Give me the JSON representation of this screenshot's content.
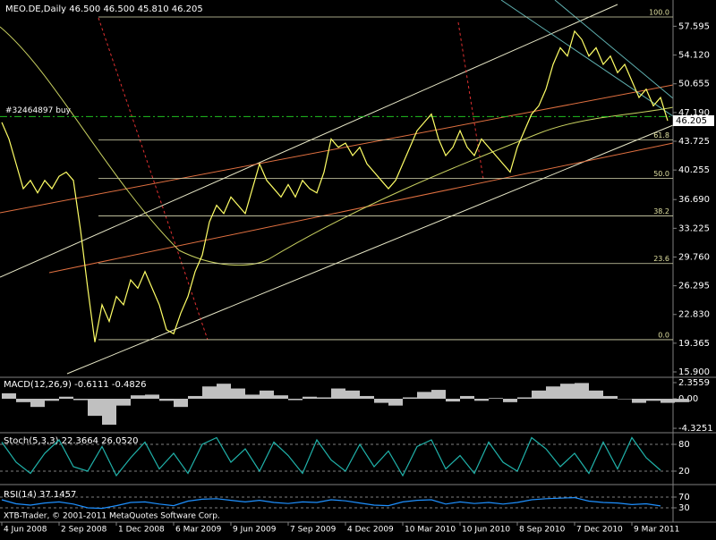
{
  "chart_data": [
    {
      "type": "line",
      "title": "MEO.DE,Daily  46.500 46.500 45.810 46.205",
      "color": "#ffff66",
      "categories": [
        "4 Jun 2008",
        null,
        null,
        null,
        null,
        null,
        null,
        null,
        "2 Sep 2008",
        null,
        null,
        null,
        null,
        null,
        null,
        null,
        "1 Dec 2008",
        null,
        null,
        null,
        null,
        null,
        null,
        null,
        "6 Mar 2009",
        null,
        null,
        null,
        null,
        null,
        null,
        null,
        "9 Jun 2009",
        null,
        null,
        null,
        null,
        null,
        null,
        null,
        "7 Sep 2009",
        null,
        null,
        null,
        null,
        null,
        null,
        null,
        "4 Dec 2009",
        null,
        null,
        null,
        null,
        null,
        null,
        null,
        "10 Mar 2010",
        null,
        null,
        null,
        null,
        null,
        null,
        null,
        "10 Jun 2010",
        null,
        null,
        null,
        null,
        null,
        null,
        null,
        "8 Sep 2010",
        null,
        null,
        null,
        null,
        null,
        null,
        null,
        "7 Dec 2010",
        null,
        null,
        null,
        null,
        null,
        null,
        null,
        "9 Mar 2011",
        null,
        null,
        null,
        null,
        null
      ],
      "values": [
        46,
        44,
        41,
        38,
        39,
        37.5,
        39,
        38,
        39.5,
        40,
        39,
        33,
        26,
        19.5,
        24,
        22,
        25,
        24,
        27,
        26,
        28,
        26,
        24,
        21,
        20.5,
        23,
        25,
        28,
        30,
        34,
        36,
        35,
        37,
        36,
        35,
        38,
        41,
        39,
        38,
        37,
        38.5,
        37,
        39,
        38,
        37.5,
        40,
        44,
        43,
        43.5,
        42,
        43,
        41,
        40,
        39,
        38,
        39,
        41,
        43,
        45,
        46,
        47,
        44,
        42,
        43,
        45,
        43,
        42,
        44,
        43,
        42,
        41,
        40,
        43,
        45,
        47,
        48,
        50,
        53,
        55,
        54,
        57,
        56,
        54,
        55,
        53,
        54,
        52,
        53,
        51,
        49,
        50,
        48,
        49,
        46.2
      ],
      "ylim": [
        15.47,
        60.33
      ],
      "yticks": [
        {
          "value": 15.9,
          "label": "15.900"
        },
        19.365,
        {
          "value": 22.83,
          "label": "22.830"
        },
        26.295,
        {
          "value": 29.76,
          "label": "29.760"
        },
        33.225,
        {
          "value": 36.69,
          "label": "36.690"
        },
        40.255,
        43.725,
        {
          "value": 47.19,
          "label": "47.190"
        },
        50.655,
        {
          "value": 54.12,
          "label": "54.120"
        },
        57.595
      ],
      "fibo_levels": [
        {
          "label": "100.0",
          "value": 58.71
        },
        {
          "label": "61.8",
          "value": 43.9
        },
        {
          "label": "50.0",
          "value": 39.25
        },
        {
          "label": "38.2",
          "value": 34.71
        },
        {
          "label": "23.6",
          "value": 28.98
        },
        {
          "label": "0.0",
          "value": 19.79
        }
      ],
      "order": {
        "label": "#32464897 buy",
        "price": 46.7
      },
      "last_price": 46.205
    },
    {
      "type": "bar",
      "title": "MACD(12,26,9) -0.6111 -0.4826",
      "color": "#c0c0c0",
      "values": [
        0.8,
        -0.5,
        -1.2,
        -0.3,
        0.3,
        -0.2,
        -2.5,
        -3.8,
        -1.0,
        0.5,
        0.6,
        -0.3,
        -1.2,
        0.4,
        1.8,
        2.2,
        1.5,
        0.6,
        1.2,
        0.5,
        -0.2,
        0.3,
        0.2,
        1.5,
        1.2,
        0.4,
        -0.6,
        -1.0,
        0.2,
        1.0,
        1.3,
        -0.4,
        0.4,
        -0.3,
        0.1,
        -0.5,
        0.2,
        1.2,
        1.8,
        2.2,
        2.3,
        1.2,
        0.4,
        0.0,
        -0.6,
        -0.3,
        -0.6,
        -0.5
      ],
      "ylim": [
        -4.71,
        2.88
      ],
      "yticks": [
        -4.3251,
        {
          "value": 0,
          "label": "0.00"
        },
        2.3559
      ]
    },
    {
      "type": "line",
      "title": "Stoch(5,3,3) 22.3664 26.0520",
      "color": "#20b2aa",
      "values": [
        85,
        40,
        15,
        60,
        90,
        30,
        20,
        75,
        10,
        50,
        85,
        25,
        60,
        15,
        80,
        95,
        40,
        70,
        20,
        85,
        55,
        15,
        90,
        45,
        20,
        80,
        30,
        65,
        10,
        75,
        90,
        25,
        55,
        15,
        85,
        40,
        20,
        95,
        70,
        30,
        60,
        15,
        85,
        25,
        95,
        50,
        22
      ],
      "ylim": [
        0,
        100
      ],
      "yticks": [
        20,
        80
      ],
      "grid": true
    },
    {
      "type": "line",
      "title": "RSI(14) 37.1457",
      "color": "#1e90ff",
      "values": [
        60,
        45,
        40,
        48,
        52,
        44,
        30,
        28,
        38,
        50,
        52,
        44,
        38,
        55,
        62,
        64,
        58,
        52,
        58,
        50,
        46,
        52,
        50,
        60,
        56,
        48,
        40,
        38,
        52,
        58,
        60,
        44,
        52,
        46,
        50,
        44,
        50,
        60,
        64,
        66,
        68,
        55,
        50,
        48,
        42,
        45,
        37
      ],
      "ylim": [
        0,
        100
      ],
      "yticks": [
        30,
        70
      ],
      "grid": true,
      "footer": "XTB-Trader, © 2001-2011 MetaQuotes Software Corp."
    }
  ]
}
